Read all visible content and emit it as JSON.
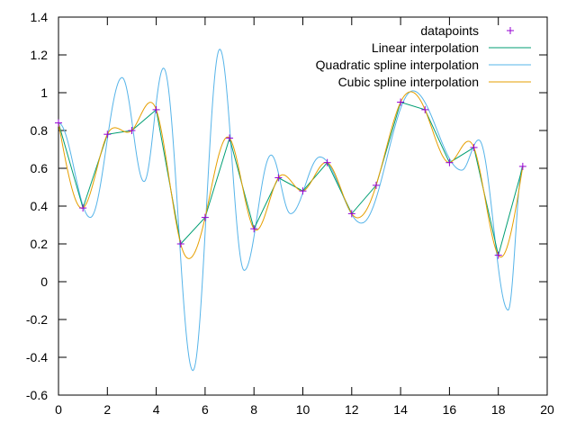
{
  "chart_data": {
    "type": "line",
    "title": "",
    "xlabel": "",
    "ylabel": "",
    "xlim": [
      0,
      20
    ],
    "ylim": [
      -0.6,
      1.4
    ],
    "x_ticks": [
      0,
      2,
      4,
      6,
      8,
      10,
      12,
      14,
      16,
      18,
      20
    ],
    "y_ticks": [
      -0.6,
      -0.4,
      -0.2,
      0,
      0.2,
      0.4,
      0.6,
      0.8,
      1,
      1.2,
      1.4
    ],
    "x_tick_labels": [
      "0",
      "2",
      "4",
      "6",
      "8",
      "10",
      "12",
      "14",
      "16",
      "18",
      "20"
    ],
    "y_tick_labels": [
      "-0.6",
      "-0.4",
      "-0.2",
      "0",
      "0.2",
      "0.4",
      "0.6",
      "0.8",
      "1",
      "1.2",
      "1.4"
    ],
    "grid": false,
    "legend_position": "top-right",
    "points": {
      "name": "datapoints",
      "color": "#9400d3",
      "x": [
        0,
        1,
        2,
        3,
        4,
        5,
        6,
        7,
        8,
        9,
        10,
        11,
        12,
        13,
        14,
        15,
        16,
        17,
        18,
        19
      ],
      "y": [
        0.84,
        0.39,
        0.78,
        0.8,
        0.91,
        0.2,
        0.34,
        0.76,
        0.28,
        0.55,
        0.48,
        0.63,
        0.36,
        0.51,
        0.95,
        0.91,
        0.63,
        0.71,
        0.14,
        0.61
      ]
    },
    "series": [
      {
        "name": "Linear interpolation",
        "color": "#009e73",
        "method": "linear"
      },
      {
        "name": "Quadratic spline interpolation",
        "color": "#56b4e9",
        "method": "quadratic",
        "extrema": [
          {
            "x": 1.3,
            "y": 0.34
          },
          {
            "x": 2.6,
            "y": 1.08
          },
          {
            "x": 3.5,
            "y": 0.53
          },
          {
            "x": 4.3,
            "y": 1.13
          },
          {
            "x": 5.5,
            "y": -0.47
          },
          {
            "x": 6.6,
            "y": 1.23
          },
          {
            "x": 7.6,
            "y": 0.06
          },
          {
            "x": 8.7,
            "y": 0.67
          },
          {
            "x": 9.5,
            "y": 0.36
          },
          {
            "x": 10.7,
            "y": 0.66
          },
          {
            "x": 12.4,
            "y": 0.31
          },
          {
            "x": 14.5,
            "y": 1.01
          },
          {
            "x": 16.5,
            "y": 0.59
          },
          {
            "x": 17.2,
            "y": 0.75
          },
          {
            "x": 18.4,
            "y": -0.15
          }
        ]
      },
      {
        "name": "Cubic spline interpolation",
        "color": "#e69f00",
        "method": "cubic"
      }
    ]
  }
}
